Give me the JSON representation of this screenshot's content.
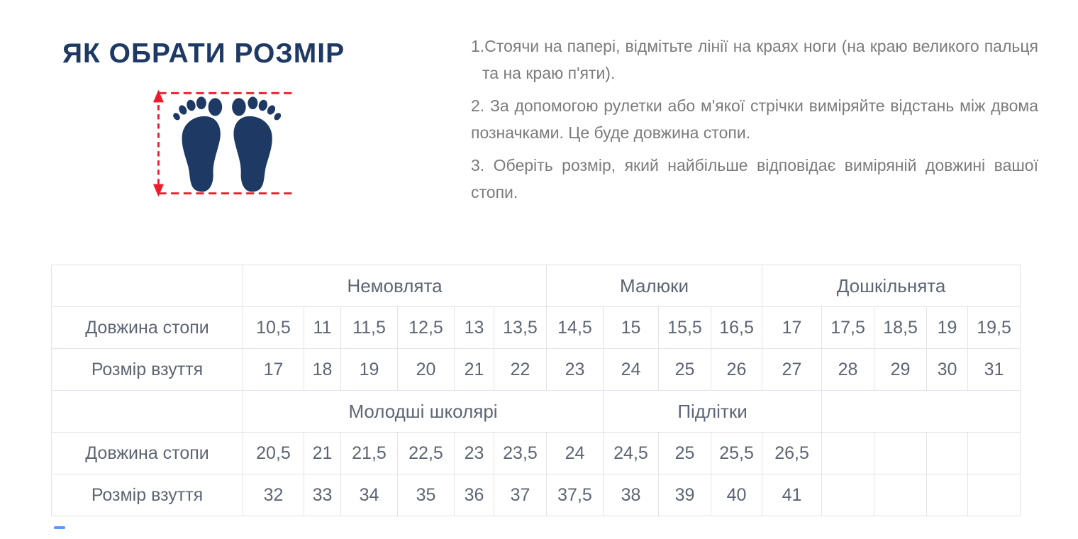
{
  "theme": {
    "navy": "#1e3a64",
    "red": "#ee1b2d",
    "text-gray": "#7b7b7b",
    "table-text": "#5d6573",
    "border": "#e1e4e8",
    "accent": "#4285f4",
    "bg": "#ffffff"
  },
  "header": {
    "title": "ЯК ОБРАТИ РОЗМІР"
  },
  "icon": {
    "name": "feet-measure-icon"
  },
  "instructions": [
    "1.Стоячи на папері, відмітьте лінії на краях ноги (на краю великого пальця та на краю п'яти).",
    "2. За допомогою рулетки або м'якої стрічки виміряйте відстань між двома позначками. Це буде довжина стопи.",
    "3. Оберіть розмір, який найбільше відповідає виміряній довжині вашої стопи."
  ],
  "size_table": {
    "row_label_foot": "Довжина стопи",
    "row_label_shoe": "Розмір взуття",
    "sections": [
      {
        "groups": [
          {
            "label": "Немовлята",
            "span": 6
          },
          {
            "label": "Малюки",
            "span": 4
          },
          {
            "label": "Дошкільнята",
            "span": 5
          }
        ],
        "foot_lengths": [
          "10,5",
          "11",
          "11,5",
          "12,5",
          "13",
          "13,5",
          "14,5",
          "15",
          "15,5",
          "16,5",
          "17",
          "17,5",
          "18,5",
          "19",
          "19,5"
        ],
        "shoe_sizes": [
          "17",
          "18",
          "19",
          "20",
          "21",
          "22",
          "23",
          "24",
          "25",
          "26",
          "27",
          "28",
          "29",
          "30",
          "31"
        ]
      },
      {
        "groups": [
          {
            "label": "Молодші школярі",
            "span": 7
          },
          {
            "label": "Підлітки",
            "span": 4
          },
          {
            "label": "",
            "span": 4
          }
        ],
        "foot_lengths": [
          "20,5",
          "21",
          "21,5",
          "22,5",
          "23",
          "23,5",
          "24",
          "24,5",
          "25",
          "25,5",
          "26,5",
          "",
          "",
          "",
          ""
        ],
        "shoe_sizes": [
          "32",
          "33",
          "34",
          "35",
          "36",
          "37",
          "37,5",
          "38",
          "39",
          "40",
          "41",
          "",
          "",
          "",
          ""
        ]
      }
    ]
  }
}
